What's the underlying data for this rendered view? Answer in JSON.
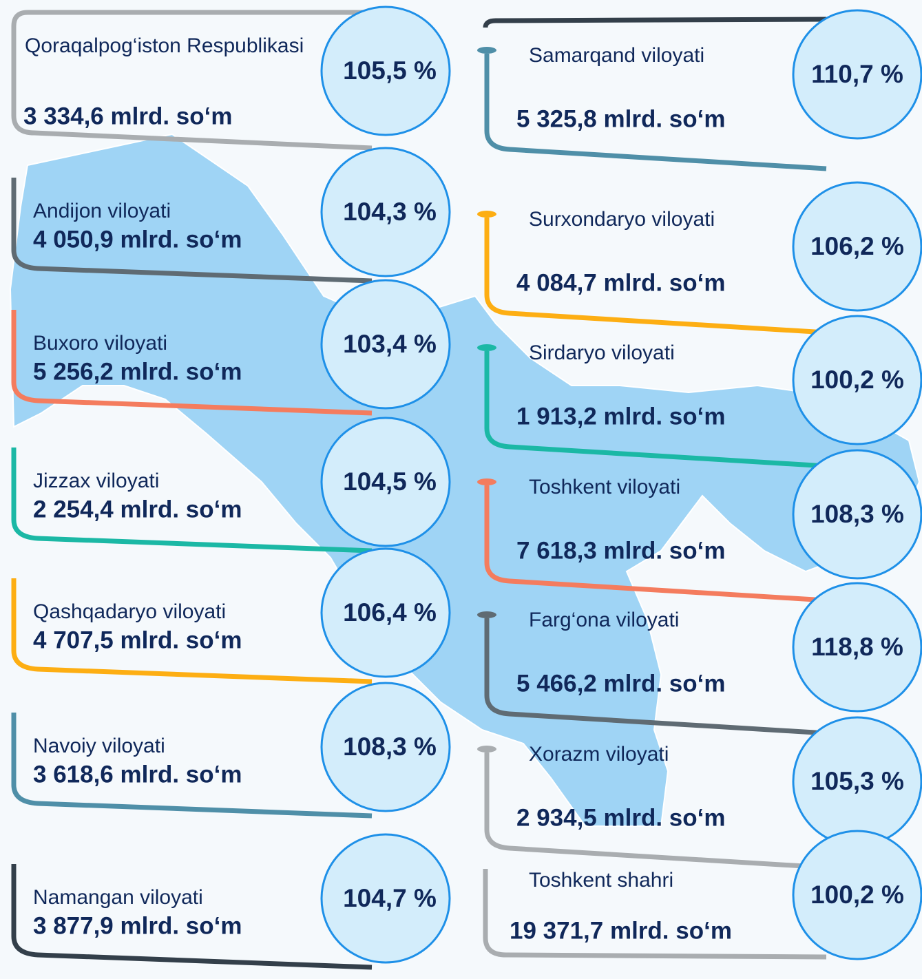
{
  "left": [
    {
      "name": "Qoraqalpog‘iston Respublikasi",
      "amount": "3 334,6 mlrd. so‘m",
      "percent": "105,5 %",
      "color": "#a9adb0"
    },
    {
      "name": "Andijon viloyati",
      "amount": "4 050,9 mlrd. so‘m",
      "percent": "104,3 %",
      "color": "#5f6b73"
    },
    {
      "name": "Buxoro viloyati",
      "amount": "5 256,2 mlrd. so‘m",
      "percent": "103,4 %",
      "color": "#f47c5e"
    },
    {
      "name": "Jizzax viloyati",
      "amount": "2 254,4 mlrd. so‘m",
      "percent": "104,5 %",
      "color": "#1bb8a5"
    },
    {
      "name": "Qashqadaryo viloyati",
      "amount": "4 707,5 mlrd. so‘m",
      "percent": "106,4 %",
      "color": "#fdae13"
    },
    {
      "name": "Navoiy viloyati",
      "amount": "3 618,6 mlrd. so‘m",
      "percent": "108,3 %",
      "color": "#4f8fa8"
    },
    {
      "name": "Namangan viloyati",
      "amount": "3 877,9 mlrd. so‘m",
      "percent": "104,7 %",
      "color": "#333f4a"
    }
  ],
  "right": [
    {
      "name": "Samarqand viloyati",
      "amount": "5 325,8 mlrd. so‘m",
      "percent": "110,7 %",
      "color": "#4f8fa8"
    },
    {
      "name": "Surxondaryo viloyati",
      "amount": "4 084,7 mlrd. so‘m",
      "percent": "106,2 %",
      "color": "#fdae13"
    },
    {
      "name": "Sirdaryo viloyati",
      "amount": "1 913,2 mlrd. so‘m",
      "percent": "100,2 %",
      "color": "#1bb8a5"
    },
    {
      "name": "Toshkent viloyati",
      "amount": "7 618,3 mlrd. so‘m",
      "percent": "108,3 %",
      "color": "#f47c5e"
    },
    {
      "name": "Farg‘ona viloyati",
      "amount": "5 466,2 mlrd. so‘m",
      "percent": "118,8 %",
      "color": "#5f6b73"
    },
    {
      "name": "Xorazm viloyati",
      "amount": "2 934,5 mlrd. so‘m",
      "percent": "105,3 %",
      "color": "#a9adb0"
    },
    {
      "name": "Toshkent shahri",
      "amount": "19 371,7 mlrd. so‘m",
      "percent": "100,2 %",
      "color": "#a9adb0"
    }
  ]
}
